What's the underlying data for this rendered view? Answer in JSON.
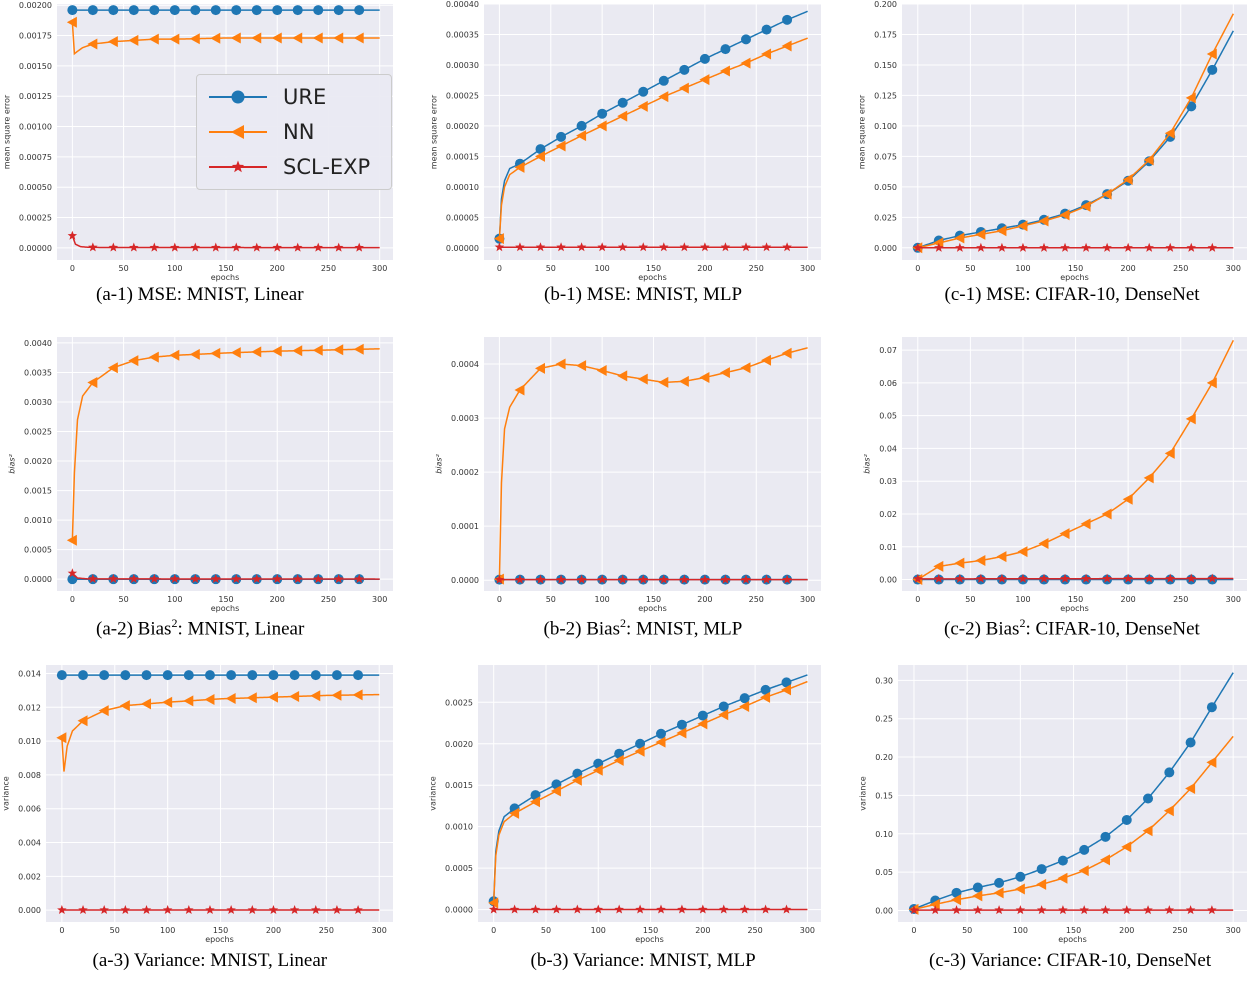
{
  "legend": [
    {
      "name": "URE",
      "color": "#1f77b4",
      "marker": "circle"
    },
    {
      "name": "NN",
      "color": "#ff7f0e",
      "marker": "triangle-left"
    },
    {
      "name": "SCL-EXP",
      "color": "#d62728",
      "marker": "star"
    }
  ],
  "chart_data": [
    {
      "type": "line",
      "id": "a1",
      "caption": {
        "prefix": "(a-1) MSE: MNIST, Linear"
      },
      "xlabel": "epochs",
      "ylabel": "mean square error",
      "xlim": [
        -15,
        313
      ],
      "ylim": [
        -0.0001,
        0.00201
      ],
      "xticks": [
        0,
        50,
        100,
        150,
        200,
        250,
        300
      ],
      "yticks": [
        0.0,
        0.00025,
        0.0005,
        0.00075,
        0.001,
        0.00125,
        0.0015,
        0.00175,
        0.002
      ],
      "ytick_labels": [
        "0.00000",
        "0.00025",
        "0.00050",
        "0.00075",
        "0.00100",
        "0.00125",
        "0.00150",
        "0.00175",
        "0.00200"
      ],
      "grid": true,
      "series": [
        {
          "name": "URE",
          "x": [
            0,
            300
          ],
          "y": [
            0.00196,
            0.00196
          ]
        },
        {
          "name": "NN",
          "x": [
            0,
            2,
            5,
            10,
            20,
            40,
            60,
            80,
            100,
            150,
            200,
            250,
            300
          ],
          "y": [
            0.00186,
            0.0016,
            0.00162,
            0.00165,
            0.00168,
            0.0017,
            0.00171,
            0.00172,
            0.00172,
            0.00173,
            0.00173,
            0.00173,
            0.00173
          ]
        },
        {
          "name": "SCL-EXP",
          "x": [
            0,
            3,
            8,
            15,
            30,
            300
          ],
          "y": [
            0.0001,
            3e-05,
            1e-05,
            5e-06,
            3e-06,
            2e-06
          ]
        }
      ]
    },
    {
      "type": "line",
      "id": "b1",
      "caption": {
        "prefix": "(b-1) MSE: MNIST, MLP"
      },
      "xlabel": "epochs",
      "ylabel": "mean square error",
      "xlim": [
        -15,
        313
      ],
      "ylim": [
        -2e-05,
        0.0004
      ],
      "xticks": [
        0,
        50,
        100,
        150,
        200,
        250,
        300
      ],
      "yticks": [
        0,
        5e-05,
        0.0001,
        0.00015,
        0.0002,
        0.00025,
        0.0003,
        0.00035,
        0.0004
      ],
      "ytick_labels": [
        "0.00000",
        "0.00005",
        "0.00010",
        "0.00015",
        "0.00020",
        "0.00025",
        "0.00030",
        "0.00035",
        "0.00040"
      ],
      "grid": true,
      "series": [
        {
          "name": "URE",
          "x": [
            0,
            2,
            5,
            10,
            20,
            40,
            60,
            80,
            100,
            120,
            140,
            160,
            180,
            200,
            220,
            240,
            260,
            280,
            300
          ],
          "y": [
            1.5e-05,
            8e-05,
            0.00011,
            0.00013,
            0.000138,
            0.000162,
            0.000182,
            0.0002,
            0.00022,
            0.000238,
            0.000256,
            0.000274,
            0.000292,
            0.00031,
            0.000326,
            0.000342,
            0.000358,
            0.000374,
            0.000388
          ]
        },
        {
          "name": "NN",
          "x": [
            0,
            2,
            5,
            10,
            20,
            40,
            60,
            80,
            100,
            120,
            140,
            160,
            180,
            200,
            220,
            240,
            260,
            280,
            300
          ],
          "y": [
            1.5e-05,
            7e-05,
            0.0001,
            0.00012,
            0.000132,
            0.00015,
            0.000167,
            0.000184,
            0.0002,
            0.000216,
            0.000232,
            0.000248,
            0.000262,
            0.000276,
            0.00029,
            0.000303,
            0.000318,
            0.000331,
            0.000344
          ]
        },
        {
          "name": "SCL-EXP",
          "x": [
            0,
            300
          ],
          "y": [
            1e-06,
            1e-06
          ]
        }
      ]
    },
    {
      "type": "line",
      "id": "c1",
      "caption": {
        "prefix": "(c-1) MSE: CIFAR-10, DenseNet"
      },
      "xlabel": "epochs",
      "ylabel": "mean square error",
      "xlim": [
        -15,
        313
      ],
      "ylim": [
        -0.01,
        0.2
      ],
      "xticks": [
        0,
        50,
        100,
        150,
        200,
        250,
        300
      ],
      "yticks": [
        0,
        0.025,
        0.05,
        0.075,
        0.1,
        0.125,
        0.15,
        0.175,
        0.2
      ],
      "ytick_labels": [
        "0.000",
        "0.025",
        "0.050",
        "0.075",
        "0.100",
        "0.125",
        "0.150",
        "0.175",
        "0.200"
      ],
      "grid": true,
      "series": [
        {
          "name": "URE",
          "x": [
            0,
            20,
            40,
            60,
            80,
            100,
            120,
            140,
            160,
            180,
            200,
            220,
            240,
            260,
            280,
            300
          ],
          "y": [
            0,
            0.006,
            0.01,
            0.013,
            0.016,
            0.019,
            0.023,
            0.028,
            0.035,
            0.044,
            0.055,
            0.071,
            0.091,
            0.116,
            0.146,
            0.178
          ]
        },
        {
          "name": "NN",
          "x": [
            0,
            20,
            40,
            60,
            80,
            100,
            120,
            140,
            160,
            180,
            200,
            220,
            240,
            260,
            280,
            300
          ],
          "y": [
            0,
            0.004,
            0.008,
            0.011,
            0.014,
            0.018,
            0.022,
            0.027,
            0.034,
            0.044,
            0.056,
            0.072,
            0.094,
            0.123,
            0.159,
            0.192
          ]
        },
        {
          "name": "SCL-EXP",
          "x": [
            0,
            300
          ],
          "y": [
            0,
            0
          ]
        }
      ]
    },
    {
      "type": "line",
      "id": "a2",
      "caption": {
        "prefix": "(a-2) Bias",
        "sup": "2",
        "suffix": ": MNIST, Linear"
      },
      "xlabel": "epochs",
      "ylabel": "bias²",
      "xlim": [
        -15,
        313
      ],
      "ylim": [
        -0.0002,
        0.0041
      ],
      "xticks": [
        0,
        50,
        100,
        150,
        200,
        250,
        300
      ],
      "yticks": [
        0,
        0.0005,
        0.001,
        0.0015,
        0.002,
        0.0025,
        0.003,
        0.0035,
        0.004
      ],
      "ytick_labels": [
        "0.0000",
        "0.0005",
        "0.0010",
        "0.0015",
        "0.0020",
        "0.0025",
        "0.0030",
        "0.0035",
        "0.0040"
      ],
      "grid": true,
      "series": [
        {
          "name": "URE",
          "x": [
            0,
            300
          ],
          "y": [
            0,
            0
          ]
        },
        {
          "name": "NN",
          "x": [
            0,
            2,
            5,
            10,
            20,
            40,
            60,
            80,
            100,
            150,
            200,
            250,
            300
          ],
          "y": [
            0.00066,
            0.0018,
            0.0027,
            0.0031,
            0.00333,
            0.00358,
            0.0037,
            0.00376,
            0.00379,
            0.00383,
            0.00386,
            0.00388,
            0.0039
          ]
        },
        {
          "name": "SCL-EXP",
          "x": [
            0,
            5,
            15,
            300
          ],
          "y": [
            0.0001,
            2e-05,
            5e-06,
            2e-06
          ]
        }
      ]
    },
    {
      "type": "line",
      "id": "b2",
      "caption": {
        "prefix": "(b-2) Bias",
        "sup": "2",
        "suffix": ": MNIST, MLP"
      },
      "xlabel": "epochs",
      "ylabel": "bias²",
      "xlim": [
        -15,
        313
      ],
      "ylim": [
        -2e-05,
        0.00045
      ],
      "xticks": [
        0,
        50,
        100,
        150,
        200,
        250,
        300
      ],
      "yticks": [
        0,
        0.0001,
        0.0002,
        0.0003,
        0.0004
      ],
      "ytick_labels": [
        "0.0000",
        "0.0001",
        "0.0002",
        "0.0003",
        "0.0004"
      ],
      "grid": true,
      "series": [
        {
          "name": "URE",
          "x": [
            0,
            300
          ],
          "y": [
            1e-06,
            1e-06
          ]
        },
        {
          "name": "NN",
          "x": [
            0,
            2,
            5,
            10,
            20,
            40,
            60,
            80,
            100,
            120,
            140,
            160,
            180,
            200,
            220,
            240,
            260,
            280,
            300
          ],
          "y": [
            2e-06,
            0.00018,
            0.00028,
            0.00032,
            0.000352,
            0.000392,
            0.0004,
            0.000397,
            0.000388,
            0.000378,
            0.000372,
            0.000366,
            0.000368,
            0.000375,
            0.000384,
            0.000393,
            0.000407,
            0.00042,
            0.00043
          ]
        },
        {
          "name": "SCL-EXP",
          "x": [
            0,
            300
          ],
          "y": [
            1e-06,
            1e-06
          ]
        }
      ]
    },
    {
      "type": "line",
      "id": "c2",
      "caption": {
        "prefix": "(c-2) Bias",
        "sup": "2",
        "suffix": ": CIFAR-10, DenseNet"
      },
      "xlabel": "epochs",
      "ylabel": "bias²",
      "xlim": [
        -15,
        313
      ],
      "ylim": [
        -0.0035,
        0.074
      ],
      "xticks": [
        0,
        50,
        100,
        150,
        200,
        250,
        300
      ],
      "yticks": [
        0,
        0.01,
        0.02,
        0.03,
        0.04,
        0.05,
        0.06,
        0.07
      ],
      "ytick_labels": [
        "0.00",
        "0.01",
        "0.02",
        "0.03",
        "0.04",
        "0.05",
        "0.06",
        "0.07"
      ],
      "grid": true,
      "series": [
        {
          "name": "URE",
          "x": [
            0,
            300
          ],
          "y": [
            0,
            0
          ]
        },
        {
          "name": "NN",
          "x": [
            0,
            20,
            40,
            60,
            80,
            100,
            120,
            140,
            160,
            180,
            200,
            220,
            240,
            260,
            280,
            300
          ],
          "y": [
            0,
            0.004,
            0.005,
            0.0058,
            0.007,
            0.0085,
            0.011,
            0.014,
            0.017,
            0.02,
            0.0245,
            0.031,
            0.0385,
            0.049,
            0.06,
            0.073
          ]
        },
        {
          "name": "SCL-EXP",
          "x": [
            0,
            300
          ],
          "y": [
            0.0002,
            0.0003
          ]
        }
      ]
    },
    {
      "type": "line",
      "id": "a3",
      "caption": {
        "prefix": "(a-3) Variance: MNIST, Linear"
      },
      "xlabel": "epochs",
      "ylabel": "variance",
      "xlim": [
        -15,
        313
      ],
      "ylim": [
        -0.0007,
        0.0145
      ],
      "xticks": [
        0,
        50,
        100,
        150,
        200,
        250,
        300
      ],
      "yticks": [
        0,
        0.002,
        0.004,
        0.006,
        0.008,
        0.01,
        0.012,
        0.014
      ],
      "ytick_labels": [
        "0.000",
        "0.002",
        "0.004",
        "0.006",
        "0.008",
        "0.010",
        "0.012",
        "0.014"
      ],
      "grid": true,
      "series": [
        {
          "name": "URE",
          "x": [
            0,
            300
          ],
          "y": [
            0.0139,
            0.0139
          ]
        },
        {
          "name": "NN",
          "x": [
            0,
            2,
            5,
            10,
            20,
            40,
            60,
            80,
            100,
            150,
            200,
            250,
            300
          ],
          "y": [
            0.0102,
            0.0082,
            0.0097,
            0.0106,
            0.0112,
            0.0118,
            0.0121,
            0.0122,
            0.0123,
            0.0125,
            0.0126,
            0.0127,
            0.01275
          ]
        },
        {
          "name": "SCL-EXP",
          "x": [
            0,
            300
          ],
          "y": [
            1e-05,
            1e-05
          ]
        }
      ]
    },
    {
      "type": "line",
      "id": "b3",
      "caption": {
        "prefix": "(b-3) Variance: MNIST, MLP"
      },
      "xlabel": "epochs",
      "ylabel": "variance",
      "xlim": [
        -15,
        313
      ],
      "ylim": [
        -0.00015,
        0.00295
      ],
      "xticks": [
        0,
        50,
        100,
        150,
        200,
        250,
        300
      ],
      "yticks": [
        0,
        0.0005,
        0.001,
        0.0015,
        0.002,
        0.0025
      ],
      "ytick_labels": [
        "0.0000",
        "0.0005",
        "0.0010",
        "0.0015",
        "0.0020",
        "0.0025"
      ],
      "grid": true,
      "series": [
        {
          "name": "URE",
          "x": [
            0,
            2,
            5,
            10,
            20,
            40,
            60,
            80,
            100,
            120,
            140,
            160,
            180,
            200,
            220,
            240,
            260,
            280,
            300
          ],
          "y": [
            0.0001,
            0.0007,
            0.00095,
            0.00112,
            0.00122,
            0.00138,
            0.00151,
            0.00164,
            0.00176,
            0.00188,
            0.002,
            0.00212,
            0.00223,
            0.00234,
            0.00245,
            0.00255,
            0.00265,
            0.00274,
            0.00283
          ]
        },
        {
          "name": "NN",
          "x": [
            0,
            2,
            5,
            10,
            20,
            40,
            60,
            80,
            100,
            120,
            140,
            160,
            180,
            200,
            220,
            240,
            260,
            280,
            300
          ],
          "y": [
            8e-05,
            0.00065,
            0.0009,
            0.00106,
            0.00116,
            0.0013,
            0.00143,
            0.00156,
            0.00168,
            0.0018,
            0.00191,
            0.00202,
            0.00213,
            0.00224,
            0.00235,
            0.00245,
            0.00256,
            0.00265,
            0.00275
          ]
        },
        {
          "name": "SCL-EXP",
          "x": [
            0,
            300
          ],
          "y": [
            1e-06,
            1e-06
          ]
        }
      ]
    },
    {
      "type": "line",
      "id": "c3",
      "caption": {
        "prefix": "(c-3) Variance: CIFAR-10, DenseNet"
      },
      "xlabel": "epochs",
      "ylabel": "variance",
      "xlim": [
        -15,
        313
      ],
      "ylim": [
        -0.015,
        0.32
      ],
      "xticks": [
        0,
        50,
        100,
        150,
        200,
        250,
        300
      ],
      "yticks": [
        0,
        0.05,
        0.1,
        0.15,
        0.2,
        0.25,
        0.3
      ],
      "ytick_labels": [
        "0.00",
        "0.05",
        "0.10",
        "0.15",
        "0.20",
        "0.25",
        "0.30"
      ],
      "grid": true,
      "series": [
        {
          "name": "URE",
          "x": [
            0,
            20,
            40,
            60,
            80,
            100,
            120,
            140,
            160,
            180,
            200,
            220,
            240,
            260,
            280,
            300
          ],
          "y": [
            0.002,
            0.013,
            0.023,
            0.03,
            0.036,
            0.044,
            0.054,
            0.065,
            0.079,
            0.096,
            0.118,
            0.146,
            0.18,
            0.219,
            0.265,
            0.31
          ]
        },
        {
          "name": "NN",
          "x": [
            0,
            20,
            40,
            60,
            80,
            100,
            120,
            140,
            160,
            180,
            200,
            220,
            240,
            260,
            280,
            300
          ],
          "y": [
            0.0015,
            0.008,
            0.014,
            0.019,
            0.023,
            0.028,
            0.034,
            0.042,
            0.052,
            0.066,
            0.083,
            0.104,
            0.13,
            0.159,
            0.193,
            0.227
          ]
        },
        {
          "name": "SCL-EXP",
          "x": [
            0,
            300
          ],
          "y": [
            0.0005,
            0.0005
          ]
        }
      ]
    }
  ]
}
